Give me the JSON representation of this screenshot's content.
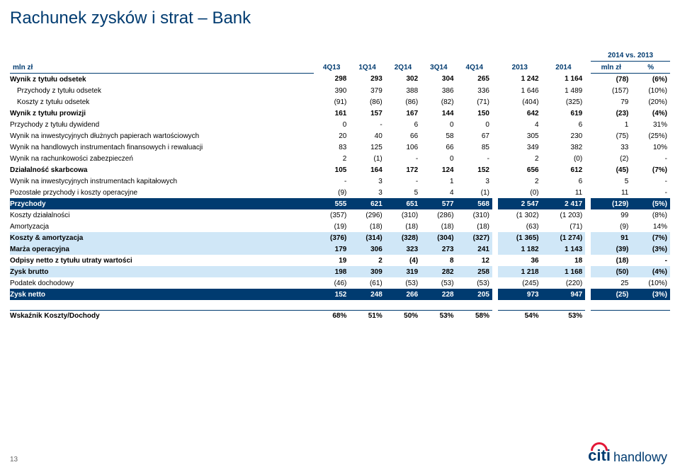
{
  "title": "Rachunek zysków i strat – Bank",
  "page_number": "13",
  "columns": {
    "unit": "mln zł",
    "periods": [
      "4Q13",
      "1Q14",
      "2Q14",
      "3Q14",
      "4Q14",
      "2013",
      "2014"
    ],
    "vs_head": "2014 vs. 2013",
    "vs_sub": [
      "mln zł",
      "%"
    ]
  },
  "rows": [
    {
      "label": "Wynik z tytułu odsetek",
      "v": [
        "298",
        "293",
        "302",
        "304",
        "265",
        "1 242",
        "1 164",
        "(78)",
        "(6%)"
      ],
      "cls": "bold-row"
    },
    {
      "label": "Przychody z tytułu odsetek",
      "v": [
        "390",
        "379",
        "388",
        "386",
        "336",
        "1 646",
        "1 489",
        "(157)",
        "(10%)"
      ],
      "cls": "sub-row"
    },
    {
      "label": "Koszty z tytułu odsetek",
      "v": [
        "(91)",
        "(86)",
        "(86)",
        "(82)",
        "(71)",
        "(404)",
        "(325)",
        "79",
        "(20%)"
      ],
      "cls": "sub-row"
    },
    {
      "label": "Wynik z tytułu prowizji",
      "v": [
        "161",
        "157",
        "167",
        "144",
        "150",
        "642",
        "619",
        "(23)",
        "(4%)"
      ],
      "cls": "bold-row"
    },
    {
      "label": "Przychody z tytułu dywidend",
      "v": [
        "0",
        "-",
        "6",
        "0",
        "0",
        "4",
        "6",
        "1",
        "31%"
      ],
      "cls": ""
    },
    {
      "label": "Wynik na inwestycyjnych dłużnych papierach wartościowych",
      "v": [
        "20",
        "40",
        "66",
        "58",
        "67",
        "305",
        "230",
        "(75)",
        "(25%)"
      ],
      "cls": ""
    },
    {
      "label": "Wynik na handlowych instrumentach finansowych i rewaluacji",
      "v": [
        "83",
        "125",
        "106",
        "66",
        "85",
        "349",
        "382",
        "33",
        "10%"
      ],
      "cls": ""
    },
    {
      "label": "Wynik na rachunkowości zabezpieczeń",
      "v": [
        "2",
        "(1)",
        "-",
        "0",
        "-",
        "2",
        "(0)",
        "(2)",
        "-"
      ],
      "cls": ""
    },
    {
      "label": "Działalność skarbcowa",
      "v": [
        "105",
        "164",
        "172",
        "124",
        "152",
        "656",
        "612",
        "(45)",
        "(7%)"
      ],
      "cls": "bold-row"
    },
    {
      "label": "Wynik na inwestycyjnych instrumentach kapitałowych",
      "v": [
        "-",
        "3",
        "-",
        "1",
        "3",
        "2",
        "6",
        "5",
        "-"
      ],
      "cls": ""
    },
    {
      "label": "Pozostałe przychody i koszty operacyjne",
      "v": [
        "(9)",
        "3",
        "5",
        "4",
        "(1)",
        "(0)",
        "11",
        "11",
        "-"
      ],
      "cls": ""
    },
    {
      "label": "Przychody",
      "v": [
        "555",
        "621",
        "651",
        "577",
        "568",
        "2 547",
        "2 417",
        "(129)",
        "(5%)"
      ],
      "cls": "navy"
    },
    {
      "label": "Koszty działalności",
      "v": [
        "(357)",
        "(296)",
        "(310)",
        "(286)",
        "(310)",
        "(1 302)",
        "(1 203)",
        "99",
        "(8%)"
      ],
      "cls": ""
    },
    {
      "label": "Amortyzacja",
      "v": [
        "(19)",
        "(18)",
        "(18)",
        "(18)",
        "(18)",
        "(63)",
        "(71)",
        "(9)",
        "14%"
      ],
      "cls": ""
    },
    {
      "label": "Koszty & amortyzacja",
      "v": [
        "(376)",
        "(314)",
        "(328)",
        "(304)",
        "(327)",
        "(1 365)",
        "(1 274)",
        "91",
        "(7%)"
      ],
      "cls": "highlight"
    },
    {
      "label": "Marża operacyjna",
      "v": [
        "179",
        "306",
        "323",
        "273",
        "241",
        "1 182",
        "1 143",
        "(39)",
        "(3%)"
      ],
      "cls": "highlight"
    },
    {
      "label": "Odpisy netto z tytułu utraty wartości",
      "v": [
        "19",
        "2",
        "(4)",
        "8",
        "12",
        "36",
        "18",
        "(18)",
        "-"
      ],
      "cls": "bold-row"
    },
    {
      "label": "Zysk brutto",
      "v": [
        "198",
        "309",
        "319",
        "282",
        "258",
        "1 218",
        "1 168",
        "(50)",
        "(4%)"
      ],
      "cls": "highlight"
    },
    {
      "label": "Podatek dochodowy",
      "v": [
        "(46)",
        "(61)",
        "(53)",
        "(53)",
        "(53)",
        "(245)",
        "(220)",
        "25",
        "(10%)"
      ],
      "cls": ""
    },
    {
      "label": "Zysk netto",
      "v": [
        "152",
        "248",
        "266",
        "228",
        "205",
        "973",
        "947",
        "(25)",
        "(3%)"
      ],
      "cls": "navy"
    }
  ],
  "ratio": {
    "label": "Wskaźnik Koszty/Dochody",
    "v": [
      "68%",
      "51%",
      "50%",
      "53%",
      "58%",
      "54%",
      "53%",
      "",
      ""
    ],
    "cls": "bold-row sep-top"
  },
  "logo": {
    "brand": "citi",
    "sub": "handlowy"
  }
}
